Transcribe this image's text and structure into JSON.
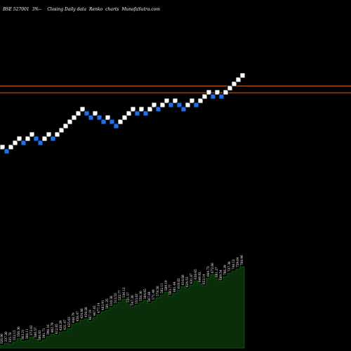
{
  "header": {
    "symbol": "BSE 527001",
    "box_size": "3%",
    "separator": "--",
    "description": "Closing Daily data",
    "chart_kind": "Renko",
    "charts_word": "charts",
    "site": "MunafaSutra.com"
  },
  "colors": {
    "background": "#000000",
    "up_brick": "#ffffff",
    "down_brick": "#1e6fe8",
    "brick_outline": "#000000",
    "resistance_line": "#c8651a",
    "volume_area": "#0a2e0a",
    "volume_outline": "#0f7a0f",
    "label_text": "#ffffff"
  },
  "chart_data": {
    "type": "renko",
    "bricks": [
      {
        "dir": "up",
        "level": 0
      },
      {
        "dir": "down",
        "level": -1
      },
      {
        "dir": "up",
        "level": 0
      },
      {
        "dir": "up",
        "level": 1
      },
      {
        "dir": "up",
        "level": 2
      },
      {
        "dir": "down",
        "level": 1
      },
      {
        "dir": "up",
        "level": 2
      },
      {
        "dir": "up",
        "level": 3
      },
      {
        "dir": "down",
        "level": 2
      },
      {
        "dir": "down",
        "level": 1
      },
      {
        "dir": "up",
        "level": 2
      },
      {
        "dir": "up",
        "level": 3
      },
      {
        "dir": "down",
        "level": 2
      },
      {
        "dir": "up",
        "level": 3
      },
      {
        "dir": "up",
        "level": 4
      },
      {
        "dir": "up",
        "level": 5
      },
      {
        "dir": "up",
        "level": 6
      },
      {
        "dir": "up",
        "level": 7
      },
      {
        "dir": "up",
        "level": 8
      },
      {
        "dir": "up",
        "level": 9
      },
      {
        "dir": "down",
        "level": 8
      },
      {
        "dir": "down",
        "level": 7
      },
      {
        "dir": "up",
        "level": 8
      },
      {
        "dir": "down",
        "level": 7
      },
      {
        "dir": "down",
        "level": 6
      },
      {
        "dir": "up",
        "level": 7
      },
      {
        "dir": "down",
        "level": 6
      },
      {
        "dir": "down",
        "level": 5
      },
      {
        "dir": "up",
        "level": 6
      },
      {
        "dir": "up",
        "level": 7
      },
      {
        "dir": "up",
        "level": 8
      },
      {
        "dir": "up",
        "level": 9
      },
      {
        "dir": "down",
        "level": 8
      },
      {
        "dir": "up",
        "level": 9
      },
      {
        "dir": "down",
        "level": 8
      },
      {
        "dir": "up",
        "level": 9
      },
      {
        "dir": "up",
        "level": 10
      },
      {
        "dir": "down",
        "level": 9
      },
      {
        "dir": "up",
        "level": 10
      },
      {
        "dir": "up",
        "level": 11
      },
      {
        "dir": "down",
        "level": 10
      },
      {
        "dir": "up",
        "level": 11
      },
      {
        "dir": "down",
        "level": 10
      },
      {
        "dir": "down",
        "level": 9
      },
      {
        "dir": "up",
        "level": 10
      },
      {
        "dir": "up",
        "level": 11
      },
      {
        "dir": "down",
        "level": 10
      },
      {
        "dir": "up",
        "level": 11
      },
      {
        "dir": "up",
        "level": 12
      },
      {
        "dir": "up",
        "level": 13
      },
      {
        "dir": "down",
        "level": 12
      },
      {
        "dir": "up",
        "level": 13
      },
      {
        "dir": "down",
        "level": 12
      },
      {
        "dir": "up",
        "level": 13
      },
      {
        "dir": "up",
        "level": 14
      },
      {
        "dir": "up",
        "level": 15
      },
      {
        "dir": "up",
        "level": 16
      },
      {
        "dir": "up",
        "level": 17
      }
    ],
    "resistance_levels": [
      14.5,
      12.9
    ],
    "price_labels": [
      "326.96",
      "337.20",
      "335.76",
      "352.15",
      "350.30",
      "363.21",
      "368.11",
      "373.62",
      "380.57",
      "386.63",
      "391.71",
      "398.16",
      "402.79",
      "412.85",
      "428.29",
      "431.47",
      "435.03",
      "448.79",
      "456.47",
      "454.86",
      "459.28",
      "467.19",
      "467.43",
      "477.14",
      "483.91",
      "501.25",
      "510.38",
      "512.55",
      "522.77",
      "536.12",
      "531.57",
      "547.36",
      "553.83",
      "558.36",
      "564.65",
      "567.84",
      "571.49",
      "578.58",
      "582.11",
      "589.19",
      "593.77",
      "601.44",
      "610.82",
      "616.08",
      "624.53",
      "631.87",
      "638.65",
      "649.92",
      "653.14",
      "664.73",
      "672.66",
      "681.27",
      "689.54",
      "706.39",
      "727.38",
      "748.12",
      "759.64",
      "768.96"
    ],
    "volume": [
      4,
      7,
      6,
      9,
      14,
      10,
      11,
      16,
      13,
      9,
      12,
      17,
      20,
      18,
      23,
      24,
      28,
      34,
      36,
      40,
      42,
      38,
      44,
      48,
      52,
      54,
      58,
      62,
      66,
      70,
      63,
      59,
      61,
      65,
      68,
      64,
      67,
      72,
      76,
      80,
      74,
      78,
      83,
      88,
      85,
      90,
      96,
      92,
      89,
      100,
      105,
      99,
      95,
      102,
      107,
      110,
      113,
      116
    ]
  }
}
